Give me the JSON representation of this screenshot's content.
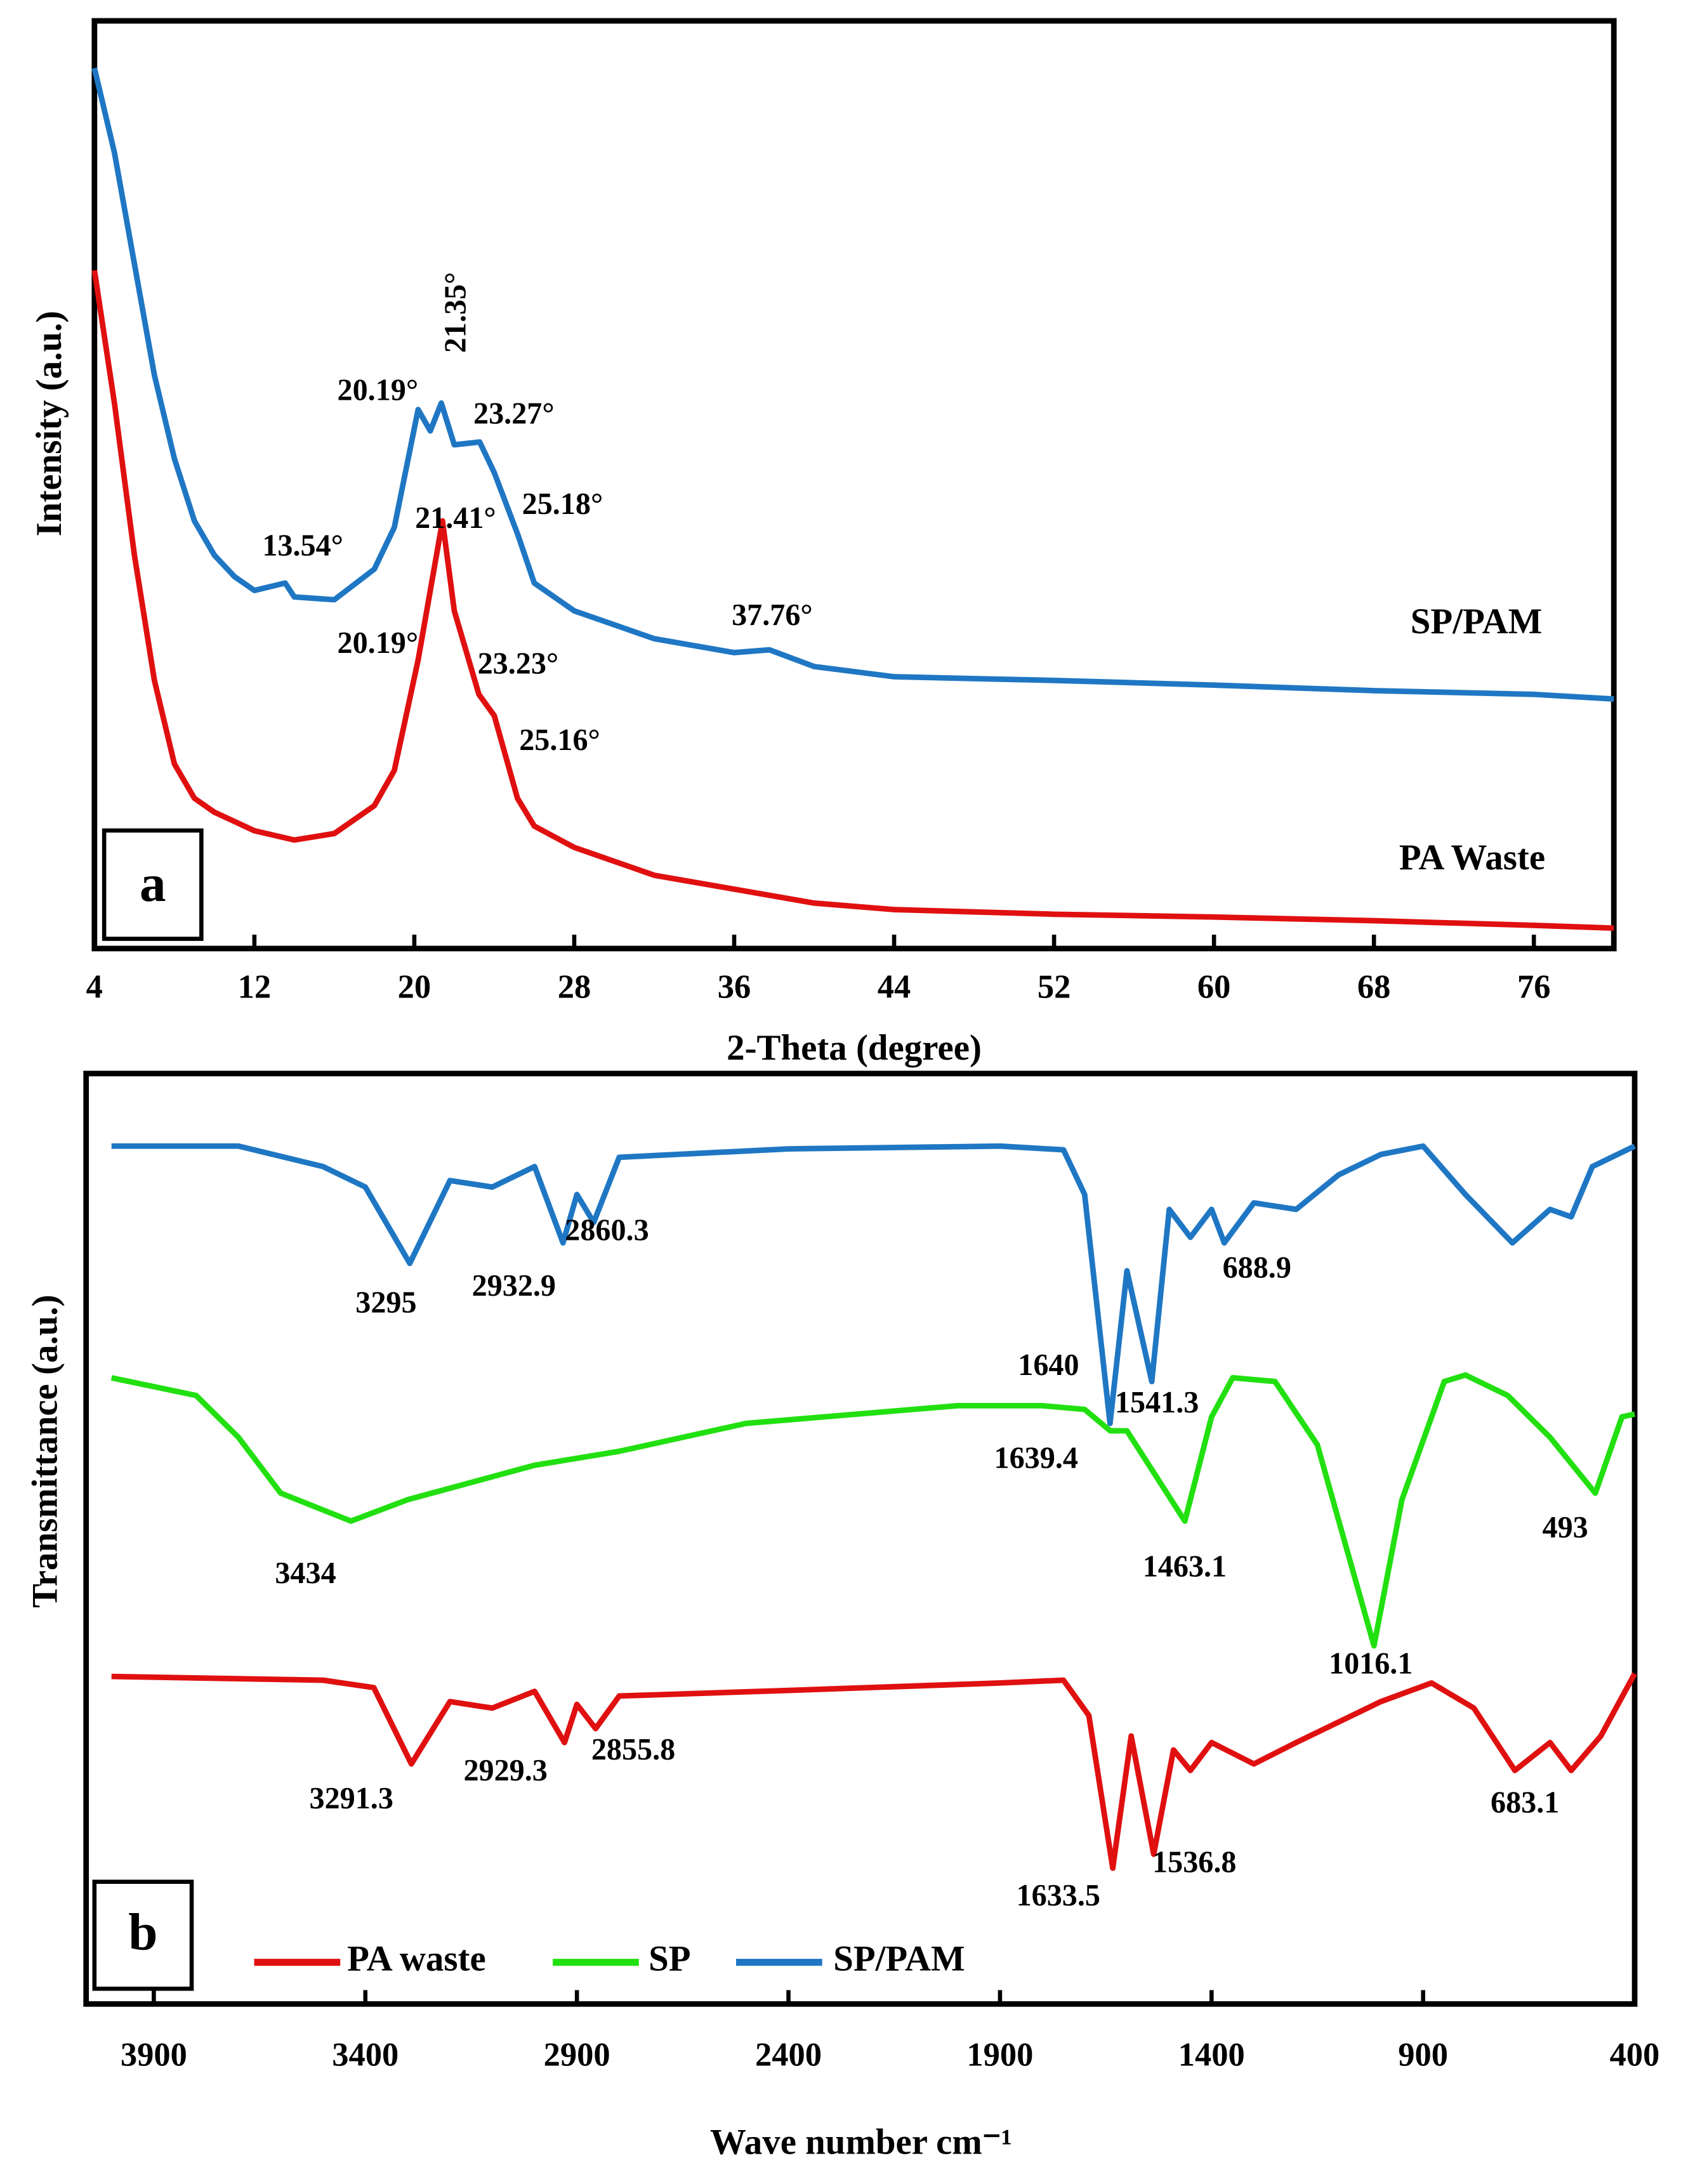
{
  "chart_data": [
    {
      "type": "line",
      "panel_label": "a",
      "xlabel": "2-Theta (degree)",
      "ylabel": "Intensity (a.u.)",
      "xlim": [
        4,
        80
      ],
      "xticks": [
        4,
        12,
        20,
        28,
        36,
        44,
        52,
        60,
        68,
        76
      ],
      "ylim": [
        0,
        100
      ],
      "legend": "direct",
      "series": [
        {
          "name": "SP/PAM",
          "color": "#1f77c4",
          "x": [
            4,
            5,
            6,
            7,
            8,
            9,
            10,
            11,
            12,
            13.54,
            14,
            16,
            18,
            19,
            20.19,
            20.8,
            21.35,
            22,
            23.27,
            24,
            25.18,
            26,
            28,
            30,
            32,
            36,
            37.76,
            40,
            44,
            52,
            60,
            68,
            76,
            80
          ],
          "values": [
            94.9,
            85.8,
            73.8,
            61.8,
            52.8,
            46.1,
            42.4,
            40.1,
            38.6,
            39.4,
            37.9,
            37.6,
            40.9,
            45.4,
            58.1,
            55.8,
            58.8,
            54.3,
            54.6,
            51.3,
            44.6,
            39.4,
            36.4,
            34.9,
            33.4,
            31.9,
            32.2,
            30.4,
            29.3,
            28.9,
            28.4,
            27.8,
            27.4,
            26.9
          ],
          "annotations": [
            "13.54°",
            "20.19°",
            "21.35°",
            "23.27°",
            "25.18°",
            "37.76°"
          ]
        },
        {
          "name": "PA Waste",
          "color": "#e01010",
          "x": [
            4,
            5,
            6,
            7,
            8,
            9,
            10,
            12,
            14,
            16,
            18,
            19,
            20.19,
            21.41,
            22,
            23.23,
            24,
            25.16,
            26,
            28,
            32,
            36,
            40,
            44,
            52,
            60,
            68,
            76,
            80
          ],
          "values": [
            73.1,
            58.8,
            42.4,
            28.9,
            19.9,
            16.2,
            14.7,
            12.7,
            11.7,
            12.4,
            15.4,
            19.2,
            31.1,
            46.1,
            36.4,
            27.4,
            25.1,
            16.2,
            13.2,
            10.9,
            7.9,
            6.4,
            4.9,
            4.2,
            3.7,
            3.4,
            3.0,
            2.5,
            2.2
          ],
          "annotations": [
            "20.19°",
            "21.41°",
            "23.23°",
            "25.16°"
          ]
        }
      ]
    },
    {
      "type": "line",
      "panel_label": "b",
      "xlabel": "Wave number cm⁻¹",
      "ylabel": "Transmittance (a.u.)",
      "xlim": [
        4060,
        400
      ],
      "xticks": [
        3900,
        3400,
        2900,
        2400,
        1900,
        1400,
        900,
        400
      ],
      "ylim": [
        0,
        100
      ],
      "legend": "lower left",
      "series": [
        {
          "name": "PA waste",
          "color": "#e01010",
          "x": [
            4000,
            3500,
            3380,
            3291.3,
            3200,
            3100,
            3000,
            2929.3,
            2900,
            2855.8,
            2800,
            2400,
            1900,
            1750,
            1690,
            1633.5,
            1590,
            1536.8,
            1490,
            1450,
            1400,
            1300,
            1200,
            1000,
            880,
            780,
            683.1,
            600,
            550,
            480,
            400
          ],
          "values": [
            35.2,
            34.8,
            34.0,
            25.8,
            32.5,
            31.8,
            33.6,
            28.1,
            32.2,
            29.6,
            33.1,
            33.7,
            34.5,
            34.8,
            31.0,
            14.6,
            28.8,
            16.1,
            27.3,
            25.1,
            28.1,
            25.8,
            28.1,
            32.5,
            34.5,
            31.8,
            25.1,
            28.1,
            25.1,
            28.8,
            35.5
          ],
          "annotations": [
            "3291.3",
            "2929.3",
            "2855.8",
            "1633.5",
            "1536.8",
            "683.1"
          ]
        },
        {
          "name": "SP",
          "color": "#22e010",
          "x": [
            4000,
            3800,
            3700,
            3600,
            3434,
            3300,
            3000,
            2800,
            2500,
            2000,
            1800,
            1700,
            1639.4,
            1600,
            1463.1,
            1400,
            1350,
            1250,
            1150,
            1016.1,
            950,
            850,
            800,
            700,
            600,
            493,
            430,
            400
          ],
          "values": [
            67.3,
            65.4,
            60.9,
            54.9,
            51.9,
            54.2,
            57.9,
            59.4,
            62.4,
            64.3,
            64.3,
            63.9,
            61.6,
            61.6,
            51.9,
            63.1,
            67.3,
            66.9,
            60.1,
            38.5,
            54.2,
            66.9,
            67.6,
            65.4,
            60.9,
            54.9,
            63.1,
            63.4
          ],
          "annotations": [
            "3434",
            "1639.4",
            "1463.1",
            "1016.1",
            "493"
          ]
        },
        {
          "name": "SP/PAM",
          "color": "#1f77c4",
          "x": [
            4000,
            3700,
            3500,
            3400,
            3295,
            3200,
            3100,
            3000,
            2932.9,
            2900,
            2860.3,
            2800,
            2400,
            1900,
            1750,
            1700,
            1640,
            1600,
            1541.3,
            1500,
            1450,
            1400,
            1370,
            1300,
            1200,
            1100,
            1000,
            900,
            800,
            688.9,
            600,
            550,
            500,
            400
          ],
          "values": [
            92.2,
            92.2,
            90.0,
            87.8,
            79.6,
            88.5,
            87.8,
            90.0,
            81.8,
            87.0,
            84.0,
            91.0,
            91.9,
            92.2,
            91.8,
            87.0,
            62.4,
            78.8,
            66.9,
            85.4,
            82.4,
            85.4,
            81.8,
            86.1,
            85.4,
            89.1,
            91.3,
            92.2,
            87.0,
            81.8,
            85.4,
            84.6,
            90.0,
            92.2
          ],
          "annotations": [
            "3295",
            "2932.9",
            "2860.3",
            "1640",
            "1541.3",
            "688.9"
          ]
        }
      ]
    }
  ]
}
